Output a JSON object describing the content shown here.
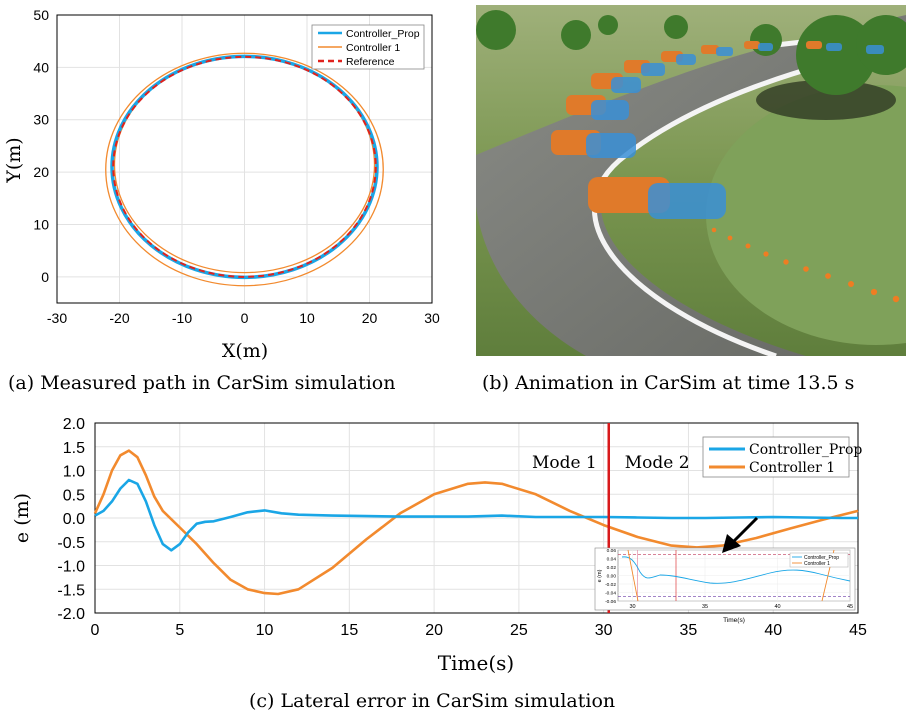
{
  "chart_data": [
    {
      "type": "line",
      "panel": "a",
      "caption": "(a) Measured path in CarSim simulation",
      "xlabel": "X(m)",
      "ylabel": "Y(m)",
      "xlim": [
        -30,
        30
      ],
      "ylim": [
        -5,
        50
      ],
      "xticks": [
        -30,
        -20,
        -10,
        0,
        10,
        20,
        30
      ],
      "yticks": [
        0,
        10,
        20,
        30,
        40,
        50
      ],
      "grid": true,
      "legend_position": "top-right",
      "series": [
        {
          "name": "Controller_Prop",
          "color": "#1aa6e6",
          "shape": "ellipse",
          "center": [
            0,
            21
          ],
          "radii": [
            21.2,
            21.1
          ]
        },
        {
          "name": "Controller 1",
          "color": "#f28a2e",
          "shape": "ellipse-pair",
          "outer": {
            "center": [
              0,
              20.5
            ],
            "radii": [
              22.2,
              22.2
            ]
          },
          "inner": {
            "center": [
              0,
              21.4
            ],
            "radii": [
              20.8,
              20.6
            ]
          }
        },
        {
          "name": "Reference",
          "color": "#e0221d",
          "style": "dashed",
          "shape": "ellipse",
          "center": [
            0,
            21
          ],
          "radii": [
            21,
            21
          ]
        }
      ]
    },
    {
      "type": "line",
      "panel": "c",
      "caption": "(c) Lateral error in CarSim simulation",
      "xlabel": "Time(s)",
      "ylabel": "e (m)",
      "xlim": [
        0,
        45
      ],
      "ylim": [
        -2.0,
        2.0
      ],
      "xticks": [
        0,
        5,
        10,
        15,
        20,
        25,
        30,
        35,
        40,
        45
      ],
      "ytick_labels": [
        "2.0",
        "1.5",
        "1.0",
        "0.5",
        "0.0",
        "-0.5",
        "-1.0",
        "-1.5",
        "-2.0"
      ],
      "grid": true,
      "legend_position": "top-right",
      "mode_switch_time": 30.3,
      "mode_labels": [
        "Mode 1",
        "Mode 2"
      ],
      "series": [
        {
          "name": "Controller_Prop",
          "color": "#1aa6e6",
          "x": [
            0,
            0.5,
            1,
            1.5,
            2,
            2.5,
            3,
            3.5,
            4,
            4.5,
            5,
            5.5,
            6,
            6.5,
            7,
            8,
            9,
            10,
            11,
            12,
            14,
            16,
            18,
            20,
            22,
            24,
            26,
            28,
            30,
            32,
            34,
            36,
            38,
            40,
            42,
            44,
            45
          ],
          "y": [
            0.05,
            0.15,
            0.35,
            0.62,
            0.8,
            0.72,
            0.35,
            -0.15,
            -0.55,
            -0.68,
            -0.55,
            -0.3,
            -0.12,
            -0.08,
            -0.07,
            0.02,
            0.12,
            0.16,
            0.1,
            0.07,
            0.05,
            0.04,
            0.03,
            0.03,
            0.03,
            0.05,
            0.02,
            0.02,
            0.02,
            0.01,
            0.0,
            0.0,
            0.01,
            0.02,
            0.01,
            0.0,
            0.0
          ]
        },
        {
          "name": "Controller 1",
          "color": "#f28a2e",
          "x": [
            0,
            0.5,
            1,
            1.5,
            2,
            2.5,
            3,
            3.5,
            4,
            5,
            6,
            7,
            8,
            9,
            10,
            10.8,
            12,
            14,
            16,
            18,
            20,
            22,
            23,
            24,
            26,
            28,
            30,
            32,
            34,
            35.5,
            37,
            39,
            41,
            43,
            45
          ],
          "y": [
            0.1,
            0.5,
            1.0,
            1.32,
            1.42,
            1.28,
            0.9,
            0.45,
            0.15,
            -0.2,
            -0.55,
            -0.95,
            -1.3,
            -1.5,
            -1.58,
            -1.6,
            -1.5,
            -1.05,
            -0.45,
            0.1,
            0.5,
            0.72,
            0.75,
            0.72,
            0.5,
            0.15,
            -0.15,
            -0.4,
            -0.58,
            -0.62,
            -0.58,
            -0.42,
            -0.22,
            -0.03,
            0.15
          ]
        }
      ],
      "inset": {
        "xlabel": "Time(s)",
        "ylabel": "e (m)",
        "xlim": [
          29,
          45
        ],
        "ylim": [
          -0.06,
          0.06
        ],
        "xticks": [
          30,
          35,
          40,
          45
        ],
        "ytick_labels": [
          "0.06",
          "0.04",
          "0.02",
          "0.00",
          "-0.02",
          "-0.04",
          "-0.06"
        ],
        "legend": [
          "Controller_Prop",
          "Controller 1"
        ]
      }
    }
  ],
  "figure_b": {
    "caption": "(b) Animation in CarSim at time 13.5 s"
  }
}
